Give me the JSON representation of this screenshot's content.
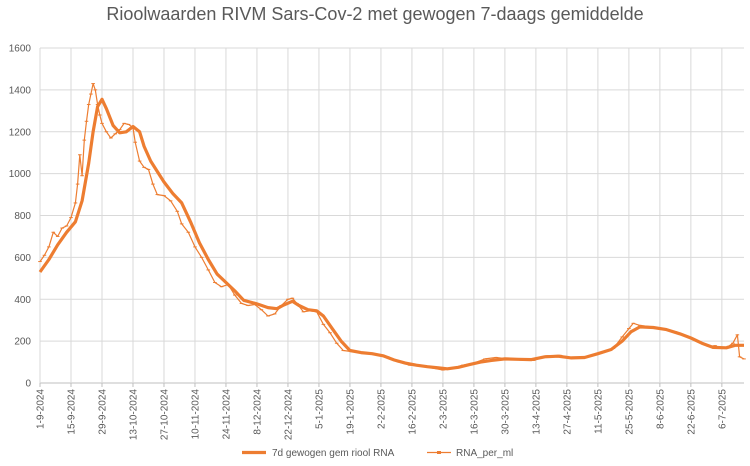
{
  "chart_data": {
    "type": "line",
    "title": "Rioolwaarden RIVM Sars-Cov-2 met gewogen 7-daags gemiddelde",
    "xlabel": "",
    "ylabel": "",
    "ylim": [
      0,
      1600
    ],
    "y_ticks": [
      "0",
      "200",
      "400",
      "600",
      "800",
      "1000",
      "1200",
      "1400",
      "1600"
    ],
    "x_range": [
      "2024-09-01",
      "2025-07-16"
    ],
    "x_tick_labels": [
      "1-9-2024",
      "15-9-2024",
      "29-9-2024",
      "13-10-2024",
      "27-10-2024",
      "10-11-2024",
      "24-11-2024",
      "8-12-2024",
      "22-12-2024",
      "5-1-2025",
      "19-1-2025",
      "2-2-2025",
      "16-2-2025",
      "2-3-2025",
      "16-3-2025",
      "30-3-2025",
      "13-4-2025",
      "27-4-2025",
      "11-5-2025",
      "25-5-2025",
      "8-6-2025",
      "22-6-2025",
      "6-7-2025"
    ],
    "grid": true,
    "legend_position": "bottom",
    "colors": {
      "series": "#ed7d31",
      "grid": "#d9d9d9",
      "text": "#595959"
    },
    "series": [
      {
        "name": "7d gewogen gem riool RNA",
        "style": "thick-line",
        "points": [
          [
            "2024-09-01",
            530
          ],
          [
            "2024-09-05",
            590
          ],
          [
            "2024-09-09",
            660
          ],
          [
            "2024-09-13",
            720
          ],
          [
            "2024-09-17",
            770
          ],
          [
            "2024-09-20",
            870
          ],
          [
            "2024-09-23",
            1050
          ],
          [
            "2024-09-25",
            1200
          ],
          [
            "2024-09-27",
            1320
          ],
          [
            "2024-09-29",
            1355
          ],
          [
            "2024-10-01",
            1310
          ],
          [
            "2024-10-04",
            1230
          ],
          [
            "2024-10-07",
            1195
          ],
          [
            "2024-10-10",
            1200
          ],
          [
            "2024-10-13",
            1225
          ],
          [
            "2024-10-16",
            1200
          ],
          [
            "2024-10-18",
            1130
          ],
          [
            "2024-10-21",
            1060
          ],
          [
            "2024-10-24",
            1010
          ],
          [
            "2024-10-27",
            960
          ],
          [
            "2024-10-31",
            905
          ],
          [
            "2024-11-04",
            860
          ],
          [
            "2024-11-08",
            770
          ],
          [
            "2024-11-12",
            670
          ],
          [
            "2024-11-16",
            590
          ],
          [
            "2024-11-20",
            520
          ],
          [
            "2024-11-24",
            480
          ],
          [
            "2024-11-28",
            440
          ],
          [
            "2024-12-02",
            395
          ],
          [
            "2024-12-08",
            378
          ],
          [
            "2024-12-13",
            360
          ],
          [
            "2024-12-17",
            355
          ],
          [
            "2024-12-20",
            372
          ],
          [
            "2024-12-24",
            390
          ],
          [
            "2024-12-27",
            370
          ],
          [
            "2024-12-31",
            350
          ],
          [
            "2025-01-04",
            345
          ],
          [
            "2025-01-07",
            320
          ],
          [
            "2025-01-11",
            260
          ],
          [
            "2025-01-15",
            200
          ],
          [
            "2025-01-19",
            155
          ],
          [
            "2025-01-24",
            145
          ],
          [
            "2025-01-29",
            140
          ],
          [
            "2025-02-03",
            130
          ],
          [
            "2025-02-08",
            110
          ],
          [
            "2025-02-13",
            95
          ],
          [
            "2025-02-18",
            85
          ],
          [
            "2025-02-23",
            78
          ],
          [
            "2025-02-28",
            72
          ],
          [
            "2025-03-04",
            68
          ],
          [
            "2025-03-09",
            75
          ],
          [
            "2025-03-14",
            88
          ],
          [
            "2025-03-19",
            100
          ],
          [
            "2025-03-24",
            108
          ],
          [
            "2025-03-30",
            115
          ],
          [
            "2025-04-05",
            113
          ],
          [
            "2025-04-11",
            112
          ],
          [
            "2025-04-17",
            125
          ],
          [
            "2025-04-23",
            128
          ],
          [
            "2025-04-29",
            120
          ],
          [
            "2025-05-05",
            122
          ],
          [
            "2025-05-11",
            140
          ],
          [
            "2025-05-17",
            160
          ],
          [
            "2025-05-22",
            200
          ],
          [
            "2025-05-26",
            245
          ],
          [
            "2025-05-30",
            268
          ],
          [
            "2025-06-05",
            265
          ],
          [
            "2025-06-11",
            255
          ],
          [
            "2025-06-17",
            235
          ],
          [
            "2025-06-22",
            215
          ],
          [
            "2025-06-27",
            190
          ],
          [
            "2025-07-02",
            170
          ],
          [
            "2025-07-08",
            168
          ],
          [
            "2025-07-12",
            180
          ],
          [
            "2025-07-16",
            180
          ]
        ]
      },
      {
        "name": "RNA_per_ml",
        "style": "thin-line-markers",
        "points": [
          [
            "2024-09-01",
            580
          ],
          [
            "2024-09-03",
            610
          ],
          [
            "2024-09-05",
            650
          ],
          [
            "2024-09-07",
            720
          ],
          [
            "2024-09-09",
            700
          ],
          [
            "2024-09-11",
            740
          ],
          [
            "2024-09-13",
            750
          ],
          [
            "2024-09-15",
            790
          ],
          [
            "2024-09-17",
            860
          ],
          [
            "2024-09-18",
            950
          ],
          [
            "2024-09-19",
            1090
          ],
          [
            "2024-09-20",
            990
          ],
          [
            "2024-09-21",
            1160
          ],
          [
            "2024-09-22",
            1250
          ],
          [
            "2024-09-23",
            1330
          ],
          [
            "2024-09-24",
            1380
          ],
          [
            "2024-09-25",
            1430
          ],
          [
            "2024-09-26",
            1400
          ],
          [
            "2024-09-27",
            1330
          ],
          [
            "2024-09-28",
            1280
          ],
          [
            "2024-09-29",
            1240
          ],
          [
            "2024-10-01",
            1200
          ],
          [
            "2024-10-03",
            1170
          ],
          [
            "2024-10-05",
            1190
          ],
          [
            "2024-10-07",
            1210
          ],
          [
            "2024-10-09",
            1240
          ],
          [
            "2024-10-11",
            1235
          ],
          [
            "2024-10-13",
            1220
          ],
          [
            "2024-10-14",
            1150
          ],
          [
            "2024-10-16",
            1060
          ],
          [
            "2024-10-18",
            1030
          ],
          [
            "2024-10-20",
            1020
          ],
          [
            "2024-10-22",
            950
          ],
          [
            "2024-10-24",
            900
          ],
          [
            "2024-10-27",
            895
          ],
          [
            "2024-10-30",
            870
          ],
          [
            "2024-11-02",
            820
          ],
          [
            "2024-11-04",
            760
          ],
          [
            "2024-11-07",
            720
          ],
          [
            "2024-11-10",
            650
          ],
          [
            "2024-11-13",
            600
          ],
          [
            "2024-11-16",
            540
          ],
          [
            "2024-11-19",
            480
          ],
          [
            "2024-11-22",
            460
          ],
          [
            "2024-11-25",
            470
          ],
          [
            "2024-11-28",
            420
          ],
          [
            "2024-12-01",
            380
          ],
          [
            "2024-12-04",
            370
          ],
          [
            "2024-12-07",
            375
          ],
          [
            "2024-12-10",
            350
          ],
          [
            "2024-12-13",
            320
          ],
          [
            "2024-12-16",
            330
          ],
          [
            "2024-12-19",
            370
          ],
          [
            "2024-12-22",
            400
          ],
          [
            "2024-12-24",
            405
          ],
          [
            "2024-12-26",
            380
          ],
          [
            "2024-12-29",
            340
          ],
          [
            "2025-01-01",
            345
          ],
          [
            "2025-01-04",
            340
          ],
          [
            "2025-01-07",
            280
          ],
          [
            "2025-01-10",
            240
          ],
          [
            "2025-01-13",
            190
          ],
          [
            "2025-01-16",
            155
          ],
          [
            "2025-01-20",
            150
          ],
          [
            "2025-01-25",
            145
          ],
          [
            "2025-01-30",
            140
          ],
          [
            "2025-02-05",
            125
          ],
          [
            "2025-02-10",
            100
          ],
          [
            "2025-02-15",
            85
          ],
          [
            "2025-02-20",
            80
          ],
          [
            "2025-02-25",
            72
          ],
          [
            "2025-03-02",
            62
          ],
          [
            "2025-03-06",
            70
          ],
          [
            "2025-03-11",
            85
          ],
          [
            "2025-03-16",
            95
          ],
          [
            "2025-03-21",
            115
          ],
          [
            "2025-03-26",
            122
          ],
          [
            "2025-03-31",
            115
          ],
          [
            "2025-04-06",
            110
          ],
          [
            "2025-04-12",
            108
          ],
          [
            "2025-04-18",
            130
          ],
          [
            "2025-04-24",
            132
          ],
          [
            "2025-04-30",
            118
          ],
          [
            "2025-05-06",
            125
          ],
          [
            "2025-05-12",
            145
          ],
          [
            "2025-05-18",
            165
          ],
          [
            "2025-05-22",
            220
          ],
          [
            "2025-05-25",
            260
          ],
          [
            "2025-05-27",
            285
          ],
          [
            "2025-05-30",
            275
          ],
          [
            "2025-06-04",
            268
          ],
          [
            "2025-06-10",
            258
          ],
          [
            "2025-06-15",
            245
          ],
          [
            "2025-06-20",
            225
          ],
          [
            "2025-06-25",
            200
          ],
          [
            "2025-06-30",
            175
          ],
          [
            "2025-07-03",
            178
          ],
          [
            "2025-07-06",
            165
          ],
          [
            "2025-07-09",
            175
          ],
          [
            "2025-07-11",
            190
          ],
          [
            "2025-07-13",
            230
          ],
          [
            "2025-07-14",
            125
          ],
          [
            "2025-07-16",
            115
          ]
        ]
      }
    ]
  }
}
